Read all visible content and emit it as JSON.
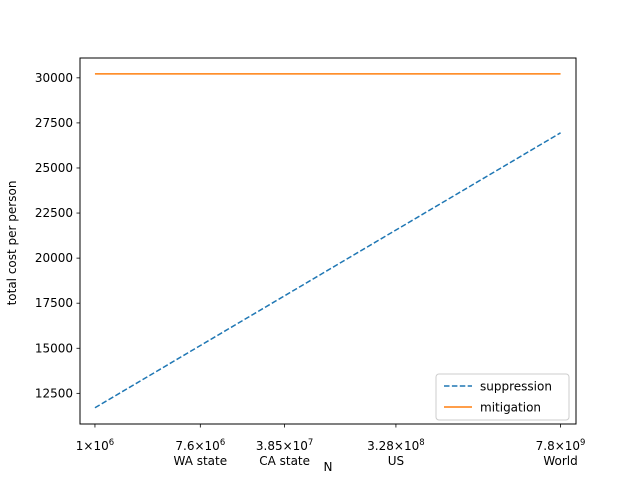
{
  "chart_data": {
    "type": "line",
    "xscale": "log",
    "xlabel": "N",
    "ylabel": "total cost per person",
    "xlim": [
      750000,
      10500000000
    ],
    "ylim": [
      10800,
      31100
    ],
    "yticks": [
      12500,
      15000,
      17500,
      20000,
      22500,
      25000,
      27500,
      30000
    ],
    "xticks": [
      {
        "value": 1000000,
        "mantissa": "1",
        "exponent": "6",
        "label": ""
      },
      {
        "value": 7600000,
        "mantissa": "7.6",
        "exponent": "6",
        "label": "WA state"
      },
      {
        "value": 38500000,
        "mantissa": "3.85",
        "exponent": "7",
        "label": "CA state"
      },
      {
        "value": 328000000,
        "mantissa": "3.28",
        "exponent": "8",
        "label": "US"
      },
      {
        "value": 7800000000,
        "mantissa": "7.8",
        "exponent": "9",
        "label": "World"
      }
    ],
    "x": [
      1000000,
      7800000000
    ],
    "series": [
      {
        "name": "suppression",
        "color": "#1f77b4",
        "dashed": true,
        "values": [
          11700,
          26950
        ]
      },
      {
        "name": "mitigation",
        "color": "#ff7f0e",
        "dashed": false,
        "values": [
          30220,
          30220
        ]
      }
    ],
    "legend_position": "lower right",
    "grid": false
  }
}
